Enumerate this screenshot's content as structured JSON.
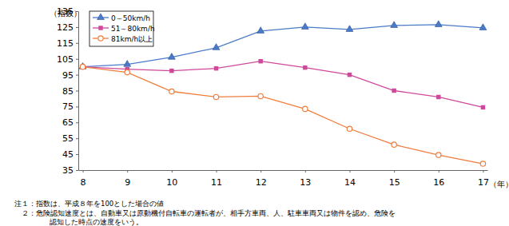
{
  "chart_data": {
    "type": "line",
    "y_label": "（指数）",
    "x_label": "（年）",
    "categories": [
      "8",
      "9",
      "10",
      "11",
      "12",
      "13",
      "14",
      "15",
      "16",
      "17"
    ],
    "series": [
      {
        "name": "0～50km/h",
        "color": "#4a7bc8",
        "marker": "triangle",
        "values": [
          100,
          101.5,
          106,
          112,
          122.5,
          125,
          123.5,
          126,
          126.5,
          124.5
        ]
      },
      {
        "name": "51～80km/h",
        "color": "#d0489a",
        "marker": "square",
        "values": [
          100,
          98.5,
          97.5,
          99,
          103.5,
          99.5,
          95,
          85,
          81,
          74.5
        ]
      },
      {
        "name": "81km/h以上",
        "color": "#f07c3c",
        "marker": "open-circle",
        "values": [
          100,
          96.5,
          84.5,
          81,
          81.5,
          73.5,
          61,
          51,
          44.5,
          39
        ]
      }
    ],
    "ylim": [
      35,
      135
    ],
    "yticks": [
      35,
      45,
      55,
      65,
      75,
      85,
      95,
      105,
      115,
      125,
      135
    ],
    "grid": false,
    "legend": "upper-left",
    "notes": [
      "注１：指数は、平成８年を100とした場合の値",
      "２：危険認知速度とは、自動車又は原動機付自転車の運転者が、相手方車両、人、駐車車両又は物件を認め、危険を",
      "認知した時点の速度をいう。"
    ]
  }
}
